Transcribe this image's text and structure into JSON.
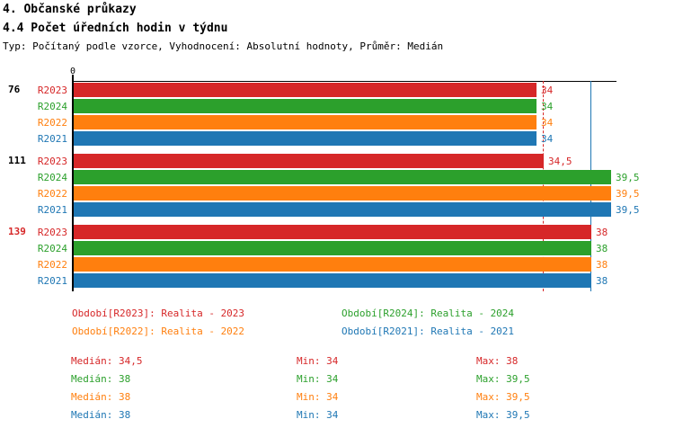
{
  "header": {
    "title1": "4. Občanské průkazy",
    "title2": "4.4 Počet úředních hodin v týdnu",
    "subtitle": "Typ: Počítaný podle vzorce, Vyhodnocení: Absolutní hodnoty, Průměr: Medián"
  },
  "colors": {
    "R2023": "#d62728",
    "R2024": "#2ca02c",
    "R2022": "#ff7f0e",
    "R2021": "#1f77b4",
    "axis": "#000000"
  },
  "chart_data": {
    "type": "bar",
    "orientation": "horizontal",
    "title": "4.4 Počet úředních hodin v týdnu",
    "xlabel": "",
    "ylabel": "",
    "xlim": [
      0,
      39.9
    ],
    "grid": false,
    "legend_position": "bottom",
    "axis_origin_label": "0",
    "series_order": [
      "R2023",
      "R2024",
      "R2022",
      "R2021"
    ],
    "groups": [
      {
        "label": "76",
        "label_color": "#000000",
        "bars": [
          {
            "series": "R2023",
            "value": 34,
            "display": "34"
          },
          {
            "series": "R2024",
            "value": 34,
            "display": "34"
          },
          {
            "series": "R2022",
            "value": 34,
            "display": "34"
          },
          {
            "series": "R2021",
            "value": 34,
            "display": "34"
          }
        ]
      },
      {
        "label": "111",
        "label_color": "#000000",
        "bars": [
          {
            "series": "R2023",
            "value": 34.5,
            "display": "34,5"
          },
          {
            "series": "R2024",
            "value": 39.5,
            "display": "39,5"
          },
          {
            "series": "R2022",
            "value": 39.5,
            "display": "39,5"
          },
          {
            "series": "R2021",
            "value": 39.5,
            "display": "39,5"
          }
        ]
      },
      {
        "label": "139",
        "label_color": "#d62728",
        "bars": [
          {
            "series": "R2023",
            "value": 38,
            "display": "38"
          },
          {
            "series": "R2024",
            "value": 38,
            "display": "38"
          },
          {
            "series": "R2022",
            "value": 38,
            "display": "38"
          },
          {
            "series": "R2021",
            "value": 38,
            "display": "38"
          }
        ]
      }
    ],
    "reference_lines": [
      {
        "value": 34.5,
        "color": "#d62728",
        "style": "dashed",
        "name": "median-R2023"
      },
      {
        "value": 38,
        "color": "#1f77b4",
        "style": "solid",
        "name": "median-R2021"
      }
    ]
  },
  "legend": {
    "items": [
      {
        "label": "Období[R2023]: Realita - 2023",
        "color": "#d62728"
      },
      {
        "label": "Období[R2024]: Realita - 2024",
        "color": "#2ca02c"
      },
      {
        "label": "Období[R2022]: Realita - 2022",
        "color": "#ff7f0e"
      },
      {
        "label": "Období[R2021]: Realita - 2021",
        "color": "#1f77b4"
      }
    ]
  },
  "stats": {
    "rows": [
      {
        "color": "#d62728",
        "median": "Medián: 34,5",
        "min": "Min: 34",
        "max": "Max: 38"
      },
      {
        "color": "#2ca02c",
        "median": "Medián: 38",
        "min": "Min: 34",
        "max": "Max: 39,5"
      },
      {
        "color": "#ff7f0e",
        "median": "Medián: 38",
        "min": "Min: 34",
        "max": "Max: 39,5"
      },
      {
        "color": "#1f77b4",
        "median": "Medián: 38",
        "min": "Min: 34",
        "max": "Max: 39,5"
      }
    ]
  }
}
